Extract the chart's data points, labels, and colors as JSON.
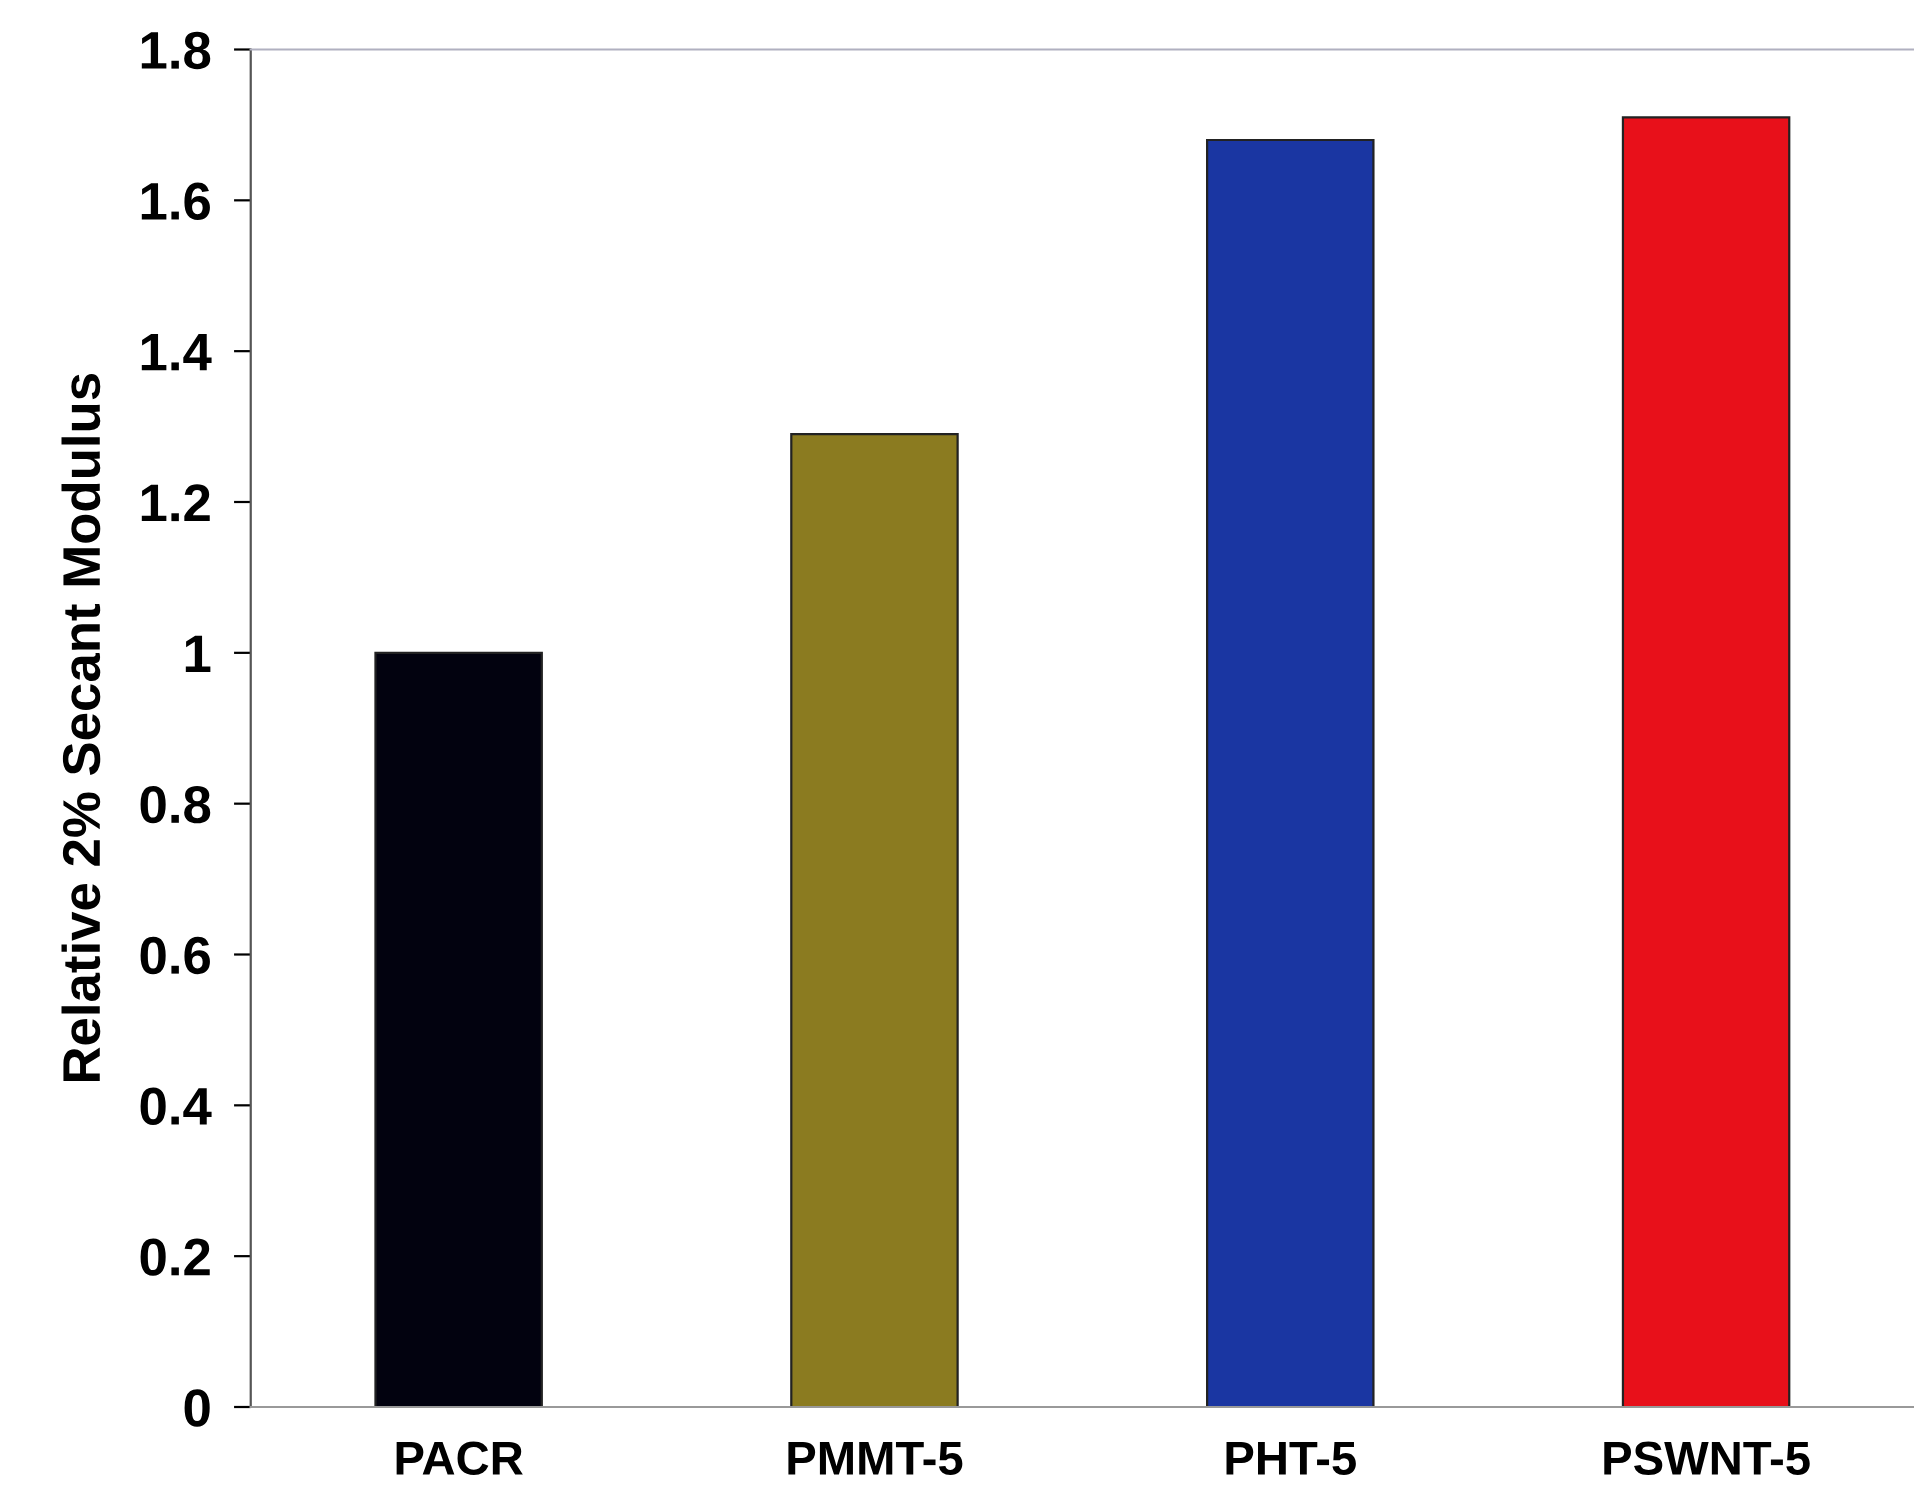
{
  "chart_data": {
    "type": "bar",
    "ylabel": "Relative 2% Secant Modulus",
    "categories": [
      "PACR",
      "PMMT-5",
      "PHT-5",
      "PSWNT-5"
    ],
    "values": [
      1.0,
      1.29,
      1.68,
      1.71
    ],
    "colors": [
      "#02020f",
      "#8b7b20",
      "#1a36a2",
      "#e8101a"
    ],
    "ylim": [
      0,
      1.8
    ],
    "yticks": [
      0,
      0.2,
      0.4,
      0.6,
      0.8,
      1,
      1.2,
      1.4,
      1.6,
      1.8
    ],
    "grid": false
  }
}
